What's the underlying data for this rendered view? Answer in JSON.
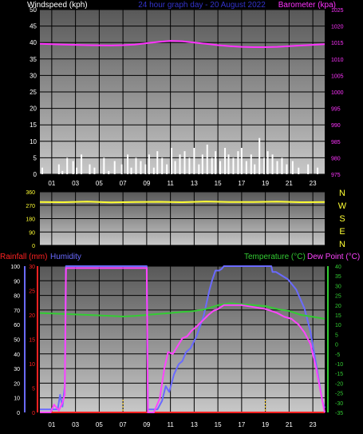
{
  "header": {
    "windspeed_title": "Windspeed (kph)",
    "subtitle": "24 hour graph day - 20 August 2022",
    "barometer_title": "Barometer (kpa)",
    "rainfall_title": "Rainfall (mm)",
    "humidity_title": "Humidity",
    "temperature_title": "Temperature (°C)",
    "dewpoint_title": "Dew Point (°C)"
  },
  "colors": {
    "wind": "#ffffff",
    "barometer": "#ff33ff",
    "direction": "#ffff33",
    "rainfall": "#ff2222",
    "humidity": "#6a6aff",
    "temperature": "#33cc33",
    "dewpoint": "#ff44ff",
    "left_axis": "#ffffff",
    "grid": "#000000"
  },
  "hours": [
    "01",
    "03",
    "05",
    "07",
    "09",
    "11",
    "13",
    "15",
    "17",
    "19",
    "21",
    "23"
  ],
  "compass": [
    "N",
    "W",
    "S",
    "E",
    "N"
  ],
  "chart_data": [
    {
      "type": "bar",
      "title": "Windspeed (kph)",
      "right_axis_title": "Barometer (kpa)",
      "ylim": [
        0,
        50
      ],
      "yticks": [
        0,
        5,
        10,
        15,
        20,
        25,
        30,
        35,
        40,
        45,
        50
      ],
      "right_ylim": [
        975,
        1025
      ],
      "right_yticks": [
        975,
        980,
        985,
        990,
        995,
        1000,
        1005,
        1010,
        1015,
        1020,
        1025
      ],
      "xlim": [
        0,
        24
      ],
      "series": [
        {
          "name": "Windspeed (kph)",
          "kind": "wind_bars",
          "hours": [
            0.2,
            1.6,
            1.9,
            2.3,
            2.8,
            3.1,
            3.5,
            4.2,
            4.6,
            5.4,
            5.8,
            6.3,
            6.9,
            7.4,
            7.7,
            8.1,
            8.5,
            8.9,
            9.2,
            9.6,
            9.9,
            10.3,
            10.7,
            11.1,
            11.4,
            11.8,
            12.2,
            12.6,
            13.0,
            13.4,
            13.7,
            14.1,
            14.5,
            14.8,
            15.2,
            15.6,
            15.9,
            16.3,
            16.7,
            17.0,
            17.4,
            17.8,
            18.1,
            18.5,
            18.9,
            19.2,
            19.6,
            20.0,
            20.4,
            20.8,
            21.3,
            21.8,
            22.6,
            23.4
          ],
          "values": [
            2,
            3,
            1,
            5,
            4,
            2,
            6,
            3,
            2,
            5,
            1,
            4,
            3,
            6,
            2,
            5,
            4,
            3,
            6,
            2,
            7,
            5,
            3,
            8,
            4,
            6,
            7,
            5,
            8,
            3,
            6,
            9,
            5,
            7,
            4,
            8,
            6,
            5,
            7,
            8,
            4,
            6,
            3,
            11,
            5,
            7,
            6,
            4,
            5,
            3,
            4,
            2,
            3,
            2
          ]
        },
        {
          "name": "Barometer (kpa)",
          "kind": "line",
          "x": [
            0,
            2,
            4,
            6,
            7,
            8,
            9,
            10,
            11,
            12,
            13,
            14,
            15,
            16,
            17,
            18,
            19,
            20,
            21,
            22,
            23,
            24
          ],
          "values": [
            1014.6,
            1014.4,
            1014.2,
            1014.1,
            1014.2,
            1014.4,
            1014.8,
            1015.2,
            1015.5,
            1015.4,
            1015.0,
            1014.6,
            1014.2,
            1013.9,
            1013.7,
            1013.6,
            1013.6,
            1013.7,
            1013.9,
            1014.1,
            1014.3,
            1014.5
          ]
        }
      ]
    },
    {
      "type": "line",
      "title": "Wind direction",
      "ylim": [
        0,
        360
      ],
      "yticks": [
        0,
        90,
        180,
        270,
        360
      ],
      "xlim": [
        0,
        24
      ],
      "series": [
        {
          "name": "Wind direction",
          "x": [
            0,
            2,
            4,
            6,
            8,
            10,
            12,
            14,
            16,
            18,
            20,
            22,
            24
          ],
          "values": [
            292,
            290,
            294,
            289,
            291,
            293,
            290,
            295,
            292,
            291,
            294,
            290,
            292
          ]
        }
      ]
    },
    {
      "type": "line",
      "xlim": [
        0,
        24
      ],
      "left_ylim": [
        0,
        100
      ],
      "left_yticks": [
        0,
        10,
        20,
        30,
        40,
        50,
        60,
        70,
        80,
        90,
        100
      ],
      "rain_ylim": [
        0,
        30
      ],
      "rain_yticks": [
        0,
        5,
        10,
        15,
        20,
        25,
        30
      ],
      "temp_ylim": [
        -35,
        40
      ],
      "temp_yticks": [
        -35,
        -30,
        -25,
        -20,
        -15,
        -10,
        -5,
        0,
        5,
        10,
        15,
        20,
        25,
        30,
        35,
        40
      ],
      "series": [
        {
          "name": "Rainfall (mm)",
          "axis": "rain",
          "x": [
            0,
            24
          ],
          "values": [
            0,
            0
          ]
        },
        {
          "name": "Humidity",
          "axis": "humidity",
          "x": [
            0,
            1.5,
            1.7,
            1.9,
            2.1,
            2.2,
            9.0,
            9.1,
            9.3,
            9.9,
            10.3,
            10.6,
            10.9,
            11.3,
            11.7,
            12.0,
            12.3,
            12.7,
            13.2,
            13.8,
            14.3,
            14.5,
            14.8,
            15.1,
            15.3,
            15.5,
            19.5,
            19.6,
            19.9,
            20.3,
            20.9,
            21.6,
            22.3,
            22.8,
            23.3,
            23.8,
            24
          ],
          "values": [
            2,
            2,
            12,
            4,
            18,
            100,
            100,
            2,
            2,
            2,
            8,
            18,
            14,
            26,
            33,
            35,
            41,
            44,
            52,
            66,
            84,
            90,
            97,
            97,
            98,
            100,
            100,
            96,
            96,
            94,
            91,
            84,
            71,
            55,
            32,
            8,
            3
          ]
        },
        {
          "name": "Temperature (°C)",
          "axis": "temp",
          "x": [
            0,
            2,
            4,
            6,
            7,
            8,
            9,
            10,
            11,
            12,
            13,
            14,
            14.5,
            15,
            15.5,
            16,
            17,
            18,
            19,
            20,
            21,
            22,
            23,
            24
          ],
          "values": [
            16,
            15.5,
            15,
            14.5,
            14.2,
            14.5,
            15,
            15.5,
            16,
            16.5,
            17,
            18,
            19,
            20,
            20.5,
            21,
            20.5,
            20,
            19.5,
            18,
            17,
            15,
            14,
            13
          ]
        },
        {
          "name": "Dew Point (°C)",
          "axis": "temp",
          "x": [
            0,
            0.9,
            1.2,
            1.6,
            1.9,
            2.1,
            2.2,
            9.0,
            9.1,
            9.3,
            9.6,
            10.1,
            10.5,
            10.8,
            11.2,
            11.6,
            12.0,
            12.4,
            12.8,
            13.2,
            13.7,
            14.2,
            14.6,
            15.0,
            15.5,
            16.0,
            17.0,
            18.0,
            19.0,
            19.5,
            20.0,
            20.6,
            21.2,
            21.8,
            22.3,
            22.8,
            23.3,
            23.8,
            24
          ],
          "values": [
            -35,
            -35,
            -31,
            -34,
            -30,
            -26,
            39,
            39,
            -35,
            -35,
            -35,
            -28,
            -12,
            -4,
            -5,
            -1,
            3,
            4,
            7,
            9,
            12,
            15,
            17,
            18,
            20,
            20,
            20,
            19,
            18,
            17,
            16,
            14,
            13,
            10,
            6,
            0,
            -13,
            -29,
            -35
          ]
        }
      ]
    }
  ]
}
